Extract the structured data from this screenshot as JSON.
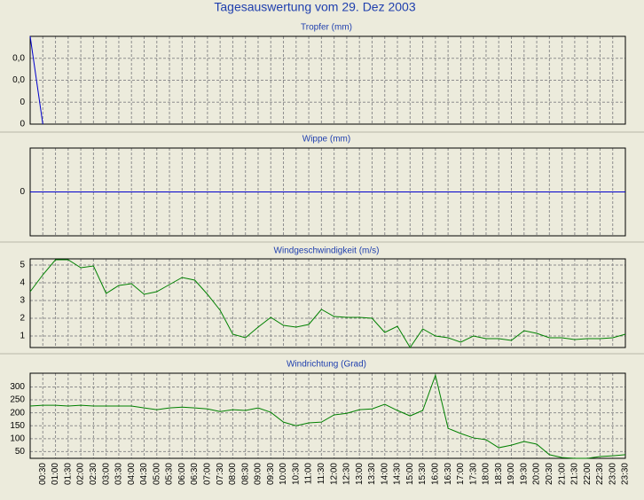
{
  "title": "Tagesauswertung vom 29. Dez 2003",
  "chart_data": [
    {
      "type": "line",
      "title": "Tropfer (mm)",
      "grid": true,
      "ylim": [
        0,
        0.04
      ],
      "yticks": [
        0,
        {
          "value": 0.01,
          "label": "0"
        },
        {
          "value": 0.02,
          "label": "0,0"
        },
        {
          "value": 0.03,
          "label": "0,0"
        }
      ],
      "series": [
        {
          "color": "#0000cc",
          "values": [
            0.04,
            0,
            null,
            null,
            null,
            null,
            null,
            null,
            null,
            null,
            null,
            null,
            null,
            null,
            null,
            null,
            null,
            null,
            null,
            null,
            null,
            null,
            null,
            null,
            null,
            null,
            null,
            null,
            null,
            null,
            null,
            null,
            null,
            null,
            null,
            null,
            null,
            null,
            null,
            null,
            null,
            null,
            null,
            null,
            null,
            null,
            null,
            null
          ]
        }
      ]
    },
    {
      "type": "line",
      "title": "Wippe (mm)",
      "grid": true,
      "ylim": [
        -1,
        1
      ],
      "yticks": [
        0
      ],
      "series": [
        {
          "color": "#0000cc",
          "values": [
            0,
            0,
            0,
            0,
            0,
            0,
            0,
            0,
            0,
            0,
            0,
            0,
            0,
            0,
            0,
            0,
            0,
            0,
            0,
            0,
            0,
            0,
            0,
            0,
            0,
            0,
            0,
            0,
            0,
            0,
            0,
            0,
            0,
            0,
            0,
            0,
            0,
            0,
            0,
            0,
            0,
            0,
            0,
            0,
            0,
            0,
            0,
            0
          ]
        }
      ]
    },
    {
      "type": "line",
      "title": "Windgeschwindigkeit (m/s)",
      "grid": true,
      "ylim": [
        0.35,
        5.35
      ],
      "yticks": [
        1,
        2,
        3,
        4,
        5
      ],
      "series": [
        {
          "color": "#008000",
          "values": [
            3.5,
            4.45,
            5.3,
            5.3,
            4.85,
            4.95,
            3.4,
            3.85,
            3.95,
            3.35,
            3.5,
            3.9,
            4.3,
            4.15,
            3.35,
            2.45,
            1.1,
            0.9,
            1.5,
            2.05,
            1.6,
            1.5,
            1.65,
            2.5,
            2.1,
            2.05,
            2.05,
            2.0,
            1.2,
            1.55,
            0.35,
            1.4,
            1.0,
            0.9,
            0.65,
            1.0,
            0.85,
            0.85,
            0.75,
            1.3,
            1.15,
            0.9,
            0.9,
            0.8,
            0.85,
            0.85,
            0.9,
            1.1
          ]
        }
      ]
    },
    {
      "type": "line",
      "title": "Windrichtung (Grad)",
      "grid": true,
      "ylim": [
        24,
        353
      ],
      "yticks": [
        50,
        100,
        150,
        200,
        250,
        300
      ],
      "categories": [
        null,
        "00:30",
        "01:00",
        "01:30",
        "02:00",
        "02:30",
        "03:00",
        "03:30",
        "04:00",
        "04:30",
        "05:00",
        "05:30",
        "06:00",
        "06:30",
        "07:00",
        "07:30",
        "08:00",
        "08:30",
        "09:00",
        "09:30",
        "10:00",
        "10:30",
        "11:00",
        "11:30",
        "12:00",
        "12:30",
        "13:00",
        "13:30",
        "14:00",
        "14:30",
        "15:00",
        "15:30",
        "16:00",
        "16:30",
        "17:00",
        "17:30",
        "18:00",
        "18:30",
        "19:00",
        "19:30",
        "20:00",
        "20:30",
        "21:00",
        "21:30",
        "22:00",
        "22:30",
        "23:00",
        "23:30"
      ],
      "series": [
        {
          "color": "#008000",
          "values": [
            226,
            229,
            229,
            226,
            229,
            226,
            226,
            226,
            226,
            219,
            212,
            219,
            222,
            219,
            215,
            205,
            212,
            209,
            219,
            202,
            164,
            150,
            161,
            164,
            192,
            198,
            212,
            215,
            233,
            209,
            188,
            209,
            345,
            140,
            120,
            103,
            96,
            65,
            75,
            89,
            79,
            38,
            27,
            24,
            24,
            31,
            34,
            38
          ]
        }
      ]
    }
  ]
}
